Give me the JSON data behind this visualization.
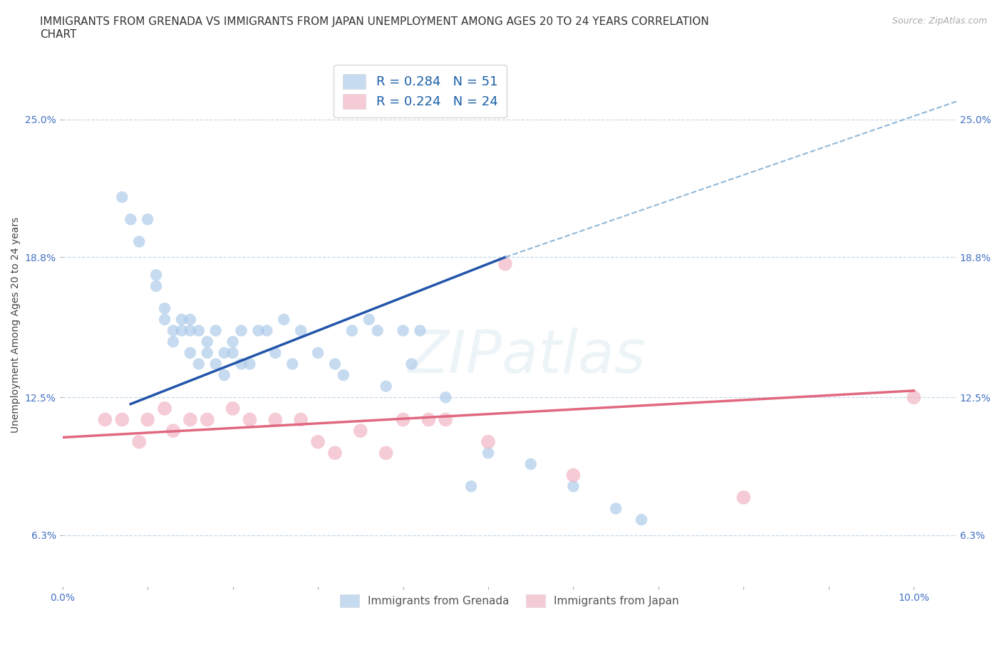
{
  "title": "IMMIGRANTS FROM GRENADA VS IMMIGRANTS FROM JAPAN UNEMPLOYMENT AMONG AGES 20 TO 24 YEARS CORRELATION\nCHART",
  "source": "Source: ZipAtlas.com",
  "xlabel": "",
  "ylabel": "Unemployment Among Ages 20 to 24 years",
  "xlim": [
    0.0,
    0.105
  ],
  "ylim": [
    0.04,
    0.275
  ],
  "xticks": [
    0.0,
    0.01,
    0.02,
    0.03,
    0.04,
    0.05,
    0.06,
    0.07,
    0.08,
    0.09,
    0.1
  ],
  "xticklabels": [
    "0.0%",
    "",
    "",
    "",
    "",
    "",
    "",
    "",
    "",
    "",
    "10.0%"
  ],
  "yticks": [
    0.063,
    0.125,
    0.188,
    0.25
  ],
  "yticklabels": [
    "6.3%",
    "12.5%",
    "18.8%",
    "25.0%"
  ],
  "watermark": "ZIPatlas",
  "background_color": "#ffffff",
  "grid_color": "#c8d8e8",
  "grenada_color": "#a8c8e8",
  "japan_color": "#f0b0c0",
  "grenada_line_color": "#2255aa",
  "japan_line_color": "#e06880",
  "dashed_line_color": "#90b8d8",
  "legend_grenada_r": "R = 0.284",
  "legend_grenada_n": "N = 51",
  "legend_japan_r": "R = 0.224",
  "legend_japan_n": "N = 24",
  "legend_label_grenada": "Immigrants from Grenada",
  "legend_label_japan": "Immigrants from Japan",
  "grenada_x": [
    0.007,
    0.008,
    0.009,
    0.01,
    0.011,
    0.011,
    0.012,
    0.012,
    0.013,
    0.013,
    0.014,
    0.014,
    0.015,
    0.015,
    0.015,
    0.016,
    0.016,
    0.017,
    0.017,
    0.018,
    0.018,
    0.019,
    0.019,
    0.02,
    0.02,
    0.021,
    0.021,
    0.022,
    0.023,
    0.024,
    0.025,
    0.026,
    0.027,
    0.028,
    0.03,
    0.032,
    0.033,
    0.034,
    0.036,
    0.037,
    0.038,
    0.04,
    0.041,
    0.042,
    0.045,
    0.048,
    0.05,
    0.055,
    0.06,
    0.065,
    0.068
  ],
  "grenada_y": [
    0.215,
    0.205,
    0.195,
    0.205,
    0.18,
    0.175,
    0.165,
    0.16,
    0.155,
    0.15,
    0.16,
    0.155,
    0.145,
    0.155,
    0.16,
    0.14,
    0.155,
    0.145,
    0.15,
    0.155,
    0.14,
    0.145,
    0.135,
    0.15,
    0.145,
    0.14,
    0.155,
    0.14,
    0.155,
    0.155,
    0.145,
    0.16,
    0.14,
    0.155,
    0.145,
    0.14,
    0.135,
    0.155,
    0.16,
    0.155,
    0.13,
    0.155,
    0.14,
    0.155,
    0.125,
    0.085,
    0.1,
    0.095,
    0.085,
    0.075,
    0.07
  ],
  "japan_x": [
    0.005,
    0.007,
    0.009,
    0.01,
    0.012,
    0.013,
    0.015,
    0.017,
    0.02,
    0.022,
    0.025,
    0.028,
    0.03,
    0.032,
    0.035,
    0.038,
    0.04,
    0.043,
    0.045,
    0.05,
    0.052,
    0.06,
    0.08,
    0.1
  ],
  "japan_y": [
    0.115,
    0.115,
    0.105,
    0.115,
    0.12,
    0.11,
    0.115,
    0.115,
    0.12,
    0.115,
    0.115,
    0.115,
    0.105,
    0.1,
    0.11,
    0.1,
    0.115,
    0.115,
    0.115,
    0.105,
    0.185,
    0.09,
    0.08,
    0.125
  ],
  "grenada_line_x": [
    0.008,
    0.052
  ],
  "grenada_line_y": [
    0.122,
    0.188
  ],
  "japan_line_x": [
    0.0,
    0.1
  ],
  "japan_line_y": [
    0.107,
    0.128
  ],
  "dashed_line_x": [
    0.052,
    0.105
  ],
  "dashed_line_y": [
    0.188,
    0.258
  ],
  "title_fontsize": 11,
  "axis_label_fontsize": 10,
  "tick_fontsize": 10,
  "legend_fontsize": 13,
  "source_fontsize": 9
}
